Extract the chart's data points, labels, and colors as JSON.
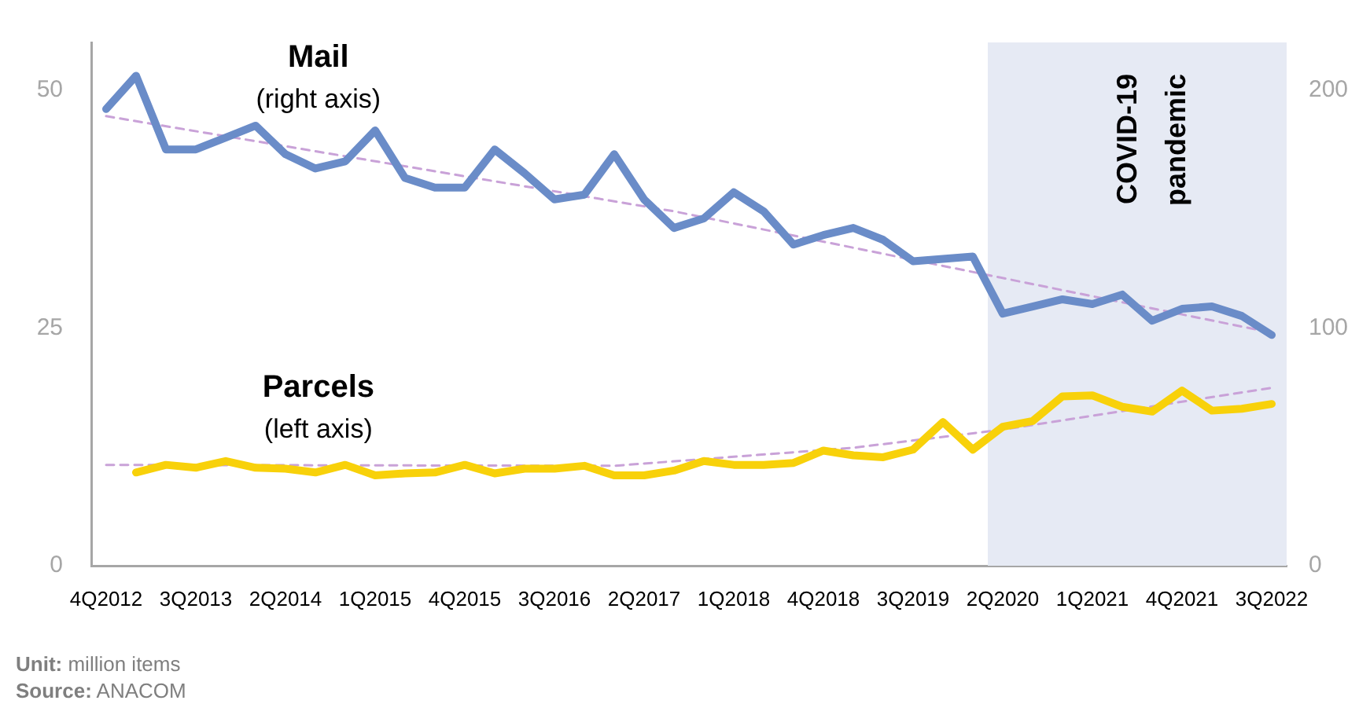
{
  "chart_data": {
    "type": "line",
    "categories": [
      "4Q2012",
      null,
      null,
      "3Q2013",
      null,
      null,
      "2Q2014",
      null,
      null,
      "1Q2015",
      null,
      null,
      "4Q2015",
      null,
      null,
      "3Q2016",
      null,
      null,
      "2Q2017",
      null,
      null,
      "1Q2018",
      null,
      null,
      "4Q2018",
      null,
      null,
      "3Q2019",
      null,
      null,
      "2Q2020",
      null,
      null,
      "1Q2021",
      null,
      null,
      "4Q2021",
      null,
      null,
      "3Q2022"
    ],
    "series": [
      {
        "name": "Mail",
        "axis": "y2",
        "color": "#6a8cc8",
        "values": [
          192,
          206,
          175,
          175,
          180,
          185,
          173,
          167,
          170,
          183,
          163,
          159,
          159,
          175,
          165,
          154,
          156,
          173,
          154,
          142,
          146,
          157,
          149,
          135,
          139,
          142,
          137,
          128,
          129,
          130,
          106,
          109,
          112,
          110,
          114,
          103,
          108,
          109,
          105,
          97
        ]
      },
      {
        "name": "Parcels",
        "axis": "y",
        "color": "#f8d10a",
        "values": [
          null,
          9.8,
          10.6,
          10.3,
          11.0,
          10.3,
          10.2,
          9.8,
          10.6,
          9.5,
          9.7,
          9.8,
          10.6,
          9.7,
          10.2,
          10.2,
          10.5,
          9.5,
          9.5,
          10.0,
          11.0,
          10.6,
          10.6,
          10.8,
          12.1,
          11.6,
          11.4,
          12.2,
          15.1,
          12.2,
          14.6,
          15.2,
          17.8,
          17.9,
          16.7,
          16.2,
          18.4,
          16.3,
          16.5,
          17.0
        ]
      },
      {
        "axis": "y2",
        "color": "#c9a2d8",
        "line_style": "dashed",
        "values": [
          189,
          null,
          null,
          null,
          null,
          null,
          null,
          null,
          null,
          null,
          null,
          null,
          null,
          null,
          null,
          null,
          null,
          null,
          null,
          149,
          null,
          null,
          null,
          null,
          null,
          null,
          null,
          null,
          null,
          null,
          null,
          null,
          null,
          null,
          null,
          null,
          null,
          null,
          null,
          98
        ]
      },
      {
        "axis": "y",
        "color": "#c9a2d8",
        "line_style": "dashed",
        "values": [
          10.6,
          null,
          null,
          null,
          null,
          null,
          null,
          null,
          null,
          null,
          null,
          null,
          null,
          null,
          null,
          null,
          null,
          10.5,
          null,
          null,
          null,
          null,
          null,
          null,
          null,
          12.4,
          null,
          null,
          null,
          null,
          14.3,
          null,
          null,
          null,
          null,
          null,
          null,
          null,
          null,
          18.7
        ]
      }
    ],
    "ylim": [
      0,
      55
    ],
    "yticks": [
      0,
      25,
      50
    ],
    "y2lim": [
      0,
      220
    ],
    "y2ticks": [
      0,
      100,
      200
    ],
    "bands": [
      {
        "axis": "x",
        "from": "2Q2020",
        "to": "3Q2022",
        "label": "COVID-19 pandemic",
        "color": "#e6eaf4"
      }
    ],
    "annotations": [
      "(right axis)",
      "(left axis)",
      "Unit: million items",
      "Source: ANACOM"
    ],
    "grid": false,
    "legend": false,
    "marker": "none",
    "line_style": "solid"
  }
}
